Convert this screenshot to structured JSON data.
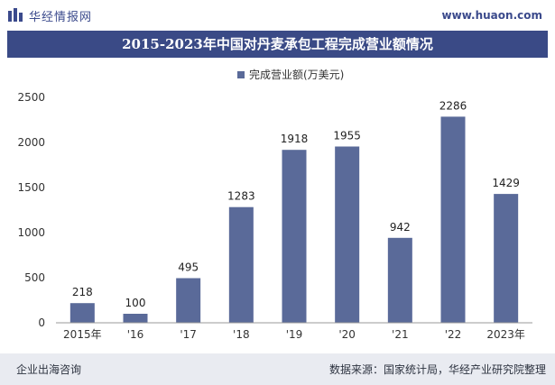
{
  "header": {
    "brand_name": "华经情报网",
    "site_url": "www.huaon.com"
  },
  "colors": {
    "bar": "#5a6a99",
    "title_bg": "#3a4a86",
    "axis": "#333333"
  },
  "chart_data": {
    "type": "bar",
    "title": "2015-2023年中国对丹麦承包工程完成营业额情况",
    "categories": [
      "2015年",
      "'16",
      "'17",
      "'18",
      "'19",
      "'20",
      "'21",
      "'22",
      "2023年"
    ],
    "series": [
      {
        "name": "完成营业额(万美元)",
        "values": [
          218,
          100,
          495,
          1283,
          1918,
          1955,
          942,
          2286,
          1429
        ]
      }
    ],
    "ylim": [
      0,
      2500
    ],
    "yticks": [
      0,
      500,
      1000,
      1500,
      2000,
      2500
    ],
    "legend": "top-center",
    "grid": false
  },
  "footer": {
    "left": "企业出海咨询",
    "right": "数据来源：国家统计局，华经产业研究院整理"
  }
}
